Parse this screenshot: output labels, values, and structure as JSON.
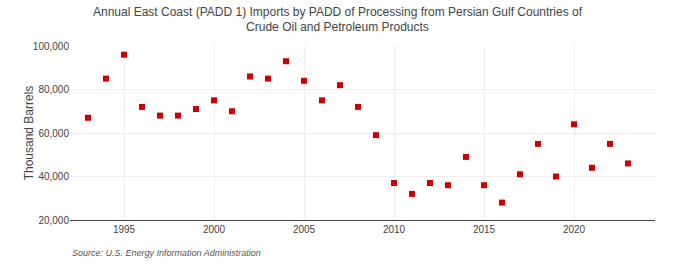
{
  "chart_data": {
    "type": "scatter",
    "title": "Annual East Coast (PADD 1) Imports by PADD of Processing from Persian Gulf Countries of\nCrude Oil and Petroleum Products",
    "ylabel": "Thousand Barrels",
    "source": "Source: U.S. Energy Information Administration",
    "x": [
      1993,
      1994,
      1995,
      1996,
      1997,
      1998,
      1999,
      2000,
      2001,
      2002,
      2003,
      2004,
      2005,
      2006,
      2007,
      2008,
      2009,
      2010,
      2011,
      2012,
      2013,
      2014,
      2015,
      2016,
      2017,
      2018,
      2019,
      2020,
      2021,
      2022,
      2023
    ],
    "values": [
      67000,
      85000,
      96000,
      72000,
      68000,
      68000,
      71000,
      75000,
      70000,
      86000,
      85000,
      93000,
      84000,
      75000,
      82000,
      72000,
      59000,
      37000,
      32000,
      37000,
      36000,
      49000,
      36000,
      28000,
      41000,
      55000,
      40000,
      64000,
      44000,
      55000,
      46000
    ],
    "color": "#cc0000",
    "marker": "square",
    "xlim": [
      1992,
      2024.5
    ],
    "ylim": [
      20000,
      100000
    ],
    "xticks": [
      1995,
      2000,
      2005,
      2010,
      2015,
      2020
    ],
    "yticks": [
      {
        "value": 20000,
        "label": "20,000"
      },
      {
        "value": 40000,
        "label": "40,000"
      },
      {
        "value": 60000,
        "label": "60,000"
      },
      {
        "value": 80000,
        "label": "80,000"
      },
      {
        "value": 100000,
        "label": "100,000"
      }
    ],
    "grid": true
  }
}
